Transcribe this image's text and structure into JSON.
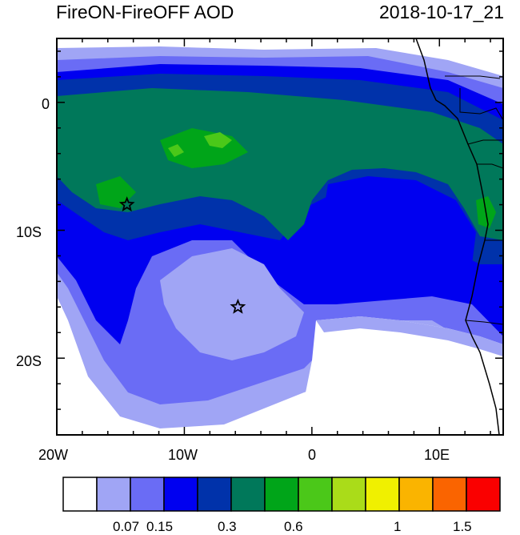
{
  "title": "FireON-FireOFF AOD",
  "timestamp": "2018-10-17_21",
  "axes": {
    "x_ticks": [
      "20W",
      "10W",
      "0",
      "10E"
    ],
    "y_ticks": [
      "0",
      "10S",
      "20S"
    ]
  },
  "colorbar": {
    "labels": [
      "0.07",
      "0.15",
      "0.3",
      "0.6",
      "1",
      "1.5"
    ],
    "colors": [
      "#ffffff",
      "#a0a5f5",
      "#6a6cf5",
      "#0000f0",
      "#0032aa",
      "#00785a",
      "#00a519",
      "#4bc819",
      "#aadc19",
      "#f0f000",
      "#fab400",
      "#fa6400",
      "#fa0000"
    ]
  },
  "markers": [
    {
      "name": "star-marker-1",
      "lon": -14.5,
      "lat": -8
    },
    {
      "name": "star-marker-2",
      "lon": -5.8,
      "lat": -16
    }
  ]
}
